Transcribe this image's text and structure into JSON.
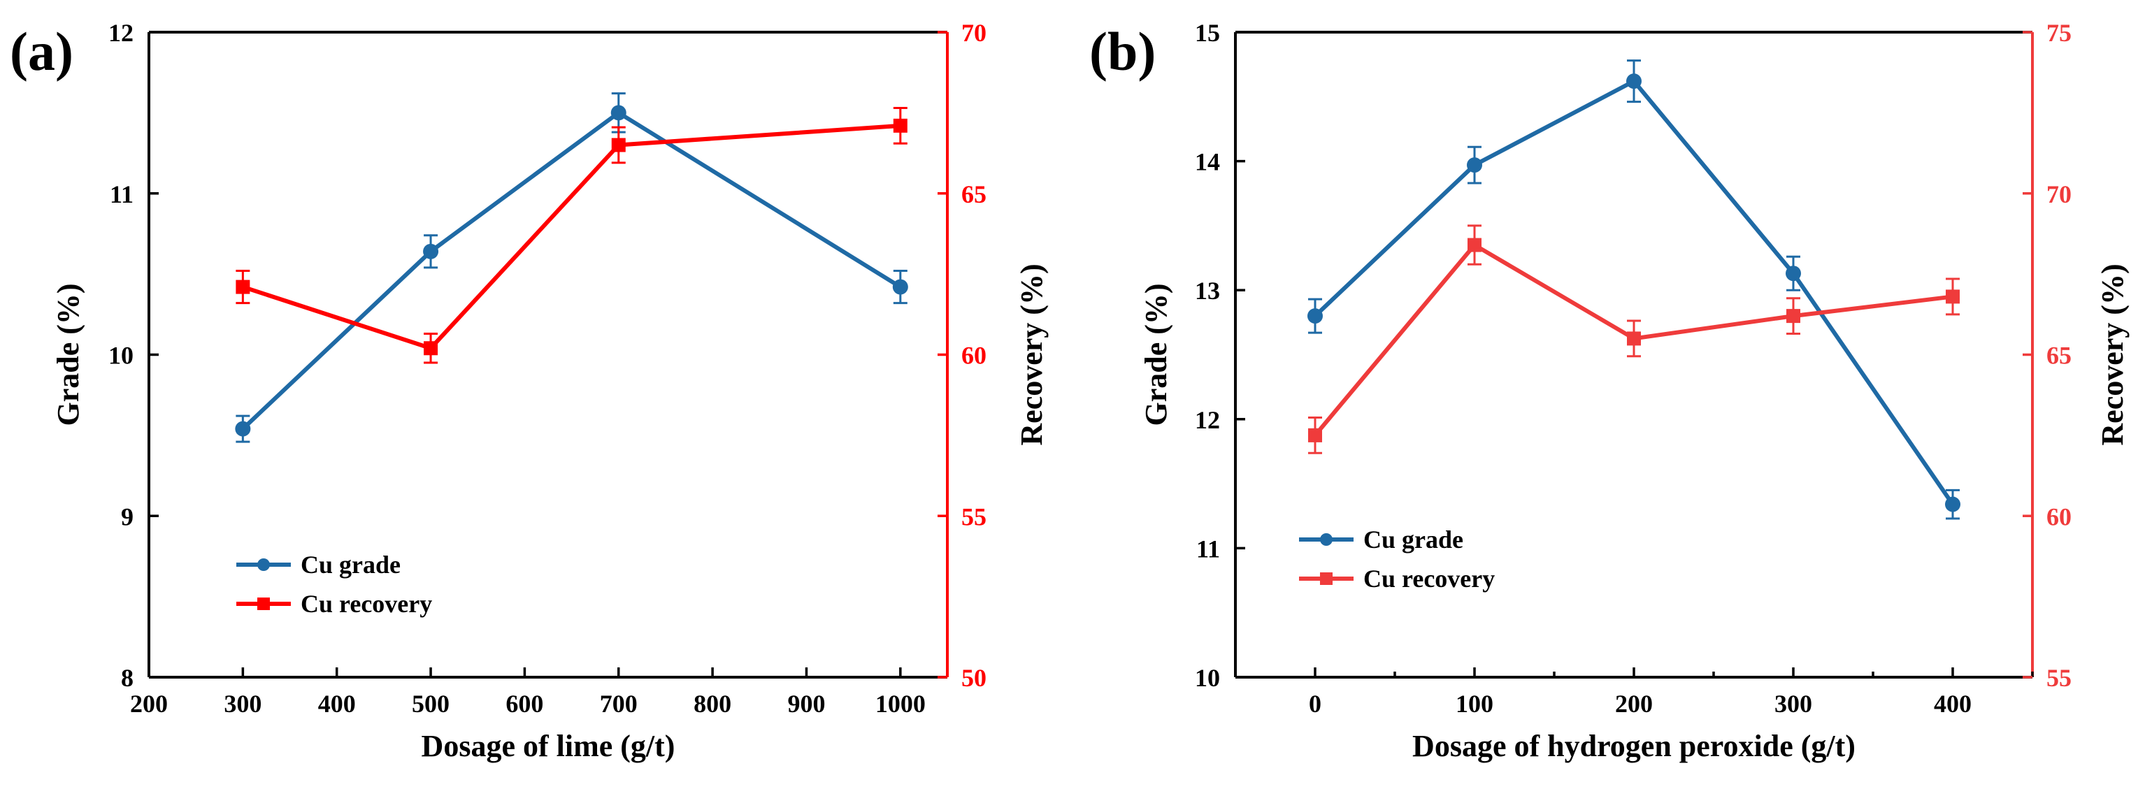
{
  "colors": {
    "grade": "#1f6aa5",
    "recovery_a": "#ff0000",
    "recovery_b": "#ef3b3b",
    "axis": "#000000"
  },
  "chart_data": [
    {
      "type": "line",
      "panel_label": "(a)",
      "xlabel": "Dosage of lime (g/t)",
      "ylabel_left": "Grade (%)",
      "ylabel_right": "Recovery (%)",
      "xlim": [
        200,
        1050
      ],
      "xticks": [
        200,
        300,
        400,
        500,
        600,
        700,
        800,
        900,
        1000
      ],
      "ylim_left": [
        8,
        12
      ],
      "yticks_left": [
        8,
        9,
        10,
        11,
        12
      ],
      "ylim_right": [
        50,
        70
      ],
      "yticks_right": [
        50,
        55,
        60,
        65,
        70
      ],
      "legend_position": "lower-left",
      "series": [
        {
          "name": "Cu grade",
          "axis": "left",
          "marker": "circle",
          "color": "#1f6aa5",
          "x": [
            300,
            500,
            700,
            1000
          ],
          "y": [
            9.54,
            10.64,
            11.5,
            10.42
          ],
          "err": [
            0.08,
            0.1,
            0.12,
            0.1
          ]
        },
        {
          "name": "Cu recovery",
          "axis": "right",
          "marker": "square",
          "color": "#ff0000",
          "x": [
            300,
            500,
            700,
            1000
          ],
          "y": [
            62.1,
            60.2,
            66.5,
            67.1
          ],
          "err": [
            0.5,
            0.45,
            0.55,
            0.55
          ]
        }
      ]
    },
    {
      "type": "line",
      "panel_label": "(b)",
      "xlabel": "Dosage of hydrogen peroxide (g/t)",
      "ylabel_left": "Grade (%)",
      "ylabel_right": "Recovery (%)",
      "xlim": [
        -50,
        450
      ],
      "xticks": [
        0,
        100,
        200,
        300,
        400
      ],
      "ylim_left": [
        10,
        15
      ],
      "yticks_left": [
        10,
        11,
        12,
        13,
        14,
        15
      ],
      "ylim_right": [
        55,
        75
      ],
      "yticks_right": [
        55,
        60,
        65,
        70,
        75
      ],
      "legend_position": "lower-left",
      "series": [
        {
          "name": "Cu grade",
          "axis": "left",
          "marker": "circle",
          "color": "#1f6aa5",
          "x": [
            0,
            100,
            200,
            300,
            400
          ],
          "y": [
            12.8,
            13.97,
            14.62,
            13.13,
            11.34
          ],
          "err": [
            0.13,
            0.14,
            0.16,
            0.13,
            0.11
          ]
        },
        {
          "name": "Cu recovery",
          "axis": "right",
          "marker": "square",
          "color": "#ef3b3b",
          "x": [
            0,
            100,
            200,
            300,
            400
          ],
          "y": [
            62.5,
            68.4,
            65.5,
            66.2,
            66.8
          ],
          "err": [
            0.55,
            0.6,
            0.55,
            0.55,
            0.55
          ]
        }
      ]
    }
  ]
}
